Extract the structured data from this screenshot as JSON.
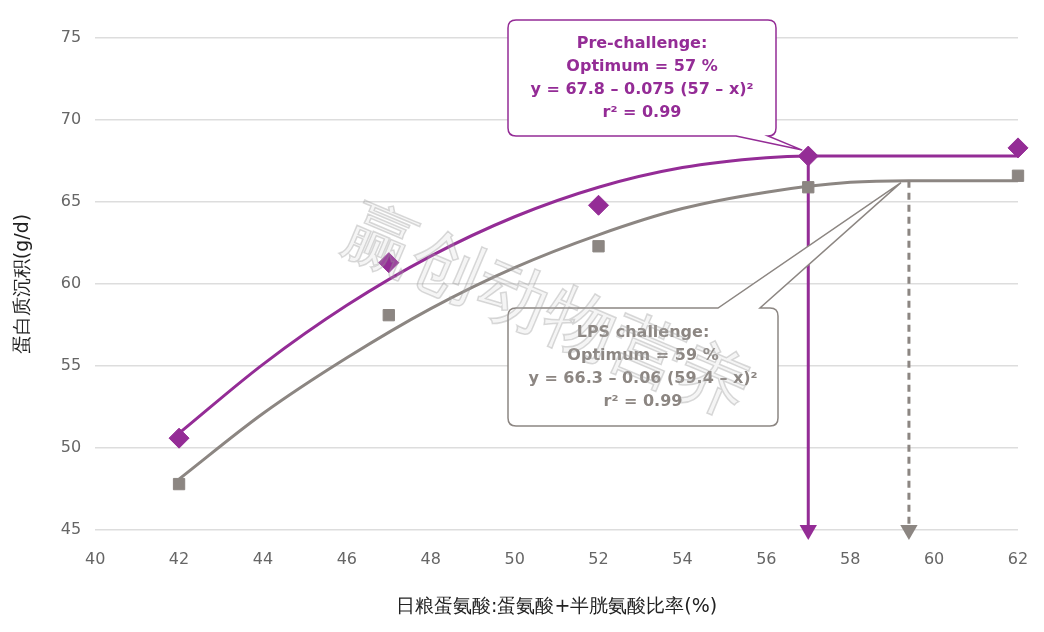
{
  "chart_data": {
    "type": "scatter",
    "x_label": "日粮蛋氨酸:蛋氨酸+半胱氨酸比率(%)",
    "y_label": "蛋白质沉积(g/d)",
    "xlim": [
      40,
      62
    ],
    "xticks": [
      40,
      42,
      44,
      46,
      48,
      50,
      52,
      54,
      56,
      58,
      60,
      62
    ],
    "ylim": [
      45,
      75
    ],
    "yticks": [
      45,
      50,
      55,
      60,
      65,
      70,
      75
    ],
    "grid": true,
    "watermark": "赢创动物营养",
    "series": [
      {
        "color": "#942c96",
        "marker": "diamond",
        "x": [
          42,
          47,
          52,
          57,
          62
        ],
        "values": [
          50.6,
          61.3,
          64.8,
          67.8,
          68.3
        ],
        "fit": {
          "x": [
            42,
            44,
            46,
            48,
            50,
            52,
            54,
            56,
            57,
            62
          ],
          "values": [
            50.9,
            55.1,
            58.7,
            61.7,
            64.1,
            65.9,
            67.1,
            67.7,
            67.8,
            67.8
          ]
        },
        "arrow": {
          "x": 57,
          "values": [
            67.8,
            45
          ],
          "line_style": "solid"
        },
        "annotation": [
          "Pre-challenge:",
          "Optimum = 57 %",
          "y = 67.8 – 0.075 (57 – x)²",
          "r² = 0.99"
        ]
      },
      {
        "color": "#8c8682",
        "marker": "square",
        "x": [
          42,
          47,
          52,
          57,
          62
        ],
        "values": [
          47.8,
          58.1,
          62.3,
          65.9,
          66.6
        ],
        "fit": {
          "x": [
            42,
            44,
            46,
            48,
            50,
            52,
            54,
            56,
            58,
            59.4,
            62
          ],
          "values": [
            48.1,
            52.1,
            55.5,
            58.5,
            61.0,
            63.0,
            64.6,
            65.6,
            66.2,
            66.3,
            66.3
          ]
        },
        "arrow": {
          "x": 59.4,
          "values": [
            66.3,
            45
          ],
          "line_style": "dashed"
        },
        "annotation": [
          "LPS challenge:",
          "Optimum = 59 %",
          "y = 66.3 – 0.06 (59.4 – x)²",
          "r² = 0.99"
        ]
      }
    ]
  }
}
